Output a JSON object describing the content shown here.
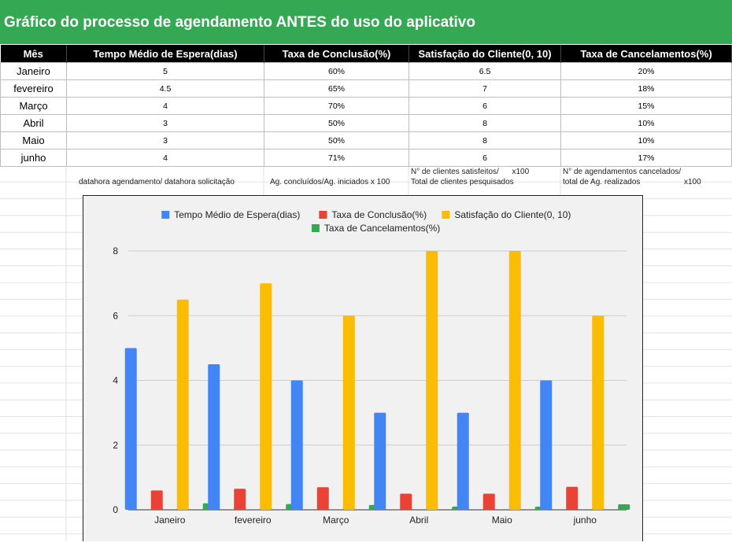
{
  "sheet": {
    "title": "Gráfico do processo de agendamento ANTES do uso do aplicativo",
    "title_bg": "#34a853",
    "headers": [
      "Mês",
      "Tempo Médio de Espera(dias)",
      "Taxa de Conclusão(%)",
      "Satisfação do Cliente(0, 10)",
      "Taxa de Cancelamentos(%)"
    ],
    "rows": [
      [
        "Janeiro",
        "5",
        "60%",
        "6.5",
        "20%"
      ],
      [
        "fevereiro",
        "4.5",
        "65%",
        "7",
        "18%"
      ],
      [
        "Março",
        "4",
        "70%",
        "6",
        "15%"
      ],
      [
        "Abril",
        "3",
        "50%",
        "8",
        "10%"
      ],
      [
        "Maio",
        "3",
        "50%",
        "8",
        "10%"
      ],
      [
        "junho",
        "4",
        "71%",
        "6",
        "17%"
      ]
    ],
    "notes": {
      "espera": "datahora agendamento/ datahora solicitação",
      "conclusao": "Ag. concluídos/Ag. iniciados x 100",
      "satisfacao_1": "N° de clientes satisfeitos/      x100",
      "satisfacao_2": "Total de clientes pesquisados",
      "cancel_1": "N° de agendamentos cancelados/",
      "cancel_2": "total de Ag. realizados                    x100"
    }
  },
  "chart_data": {
    "type": "bar",
    "categories": [
      "Janeiro",
      "fevereiro",
      "Março",
      "Abril",
      "Maio",
      "junho"
    ],
    "series": [
      {
        "name": "Tempo Médio de Espera(dias)",
        "color": "#4285f4",
        "values": [
          5,
          4.5,
          4,
          3,
          3,
          4
        ]
      },
      {
        "name": "Taxa de Conclusão(%)",
        "color": "#ea4335",
        "values": [
          0.6,
          0.65,
          0.7,
          0.5,
          0.5,
          0.71
        ]
      },
      {
        "name": "Satisfação do Cliente(0, 10)",
        "color": "#fbbc04",
        "values": [
          6.5,
          7,
          6,
          8,
          8,
          6
        ]
      },
      {
        "name": "Taxa de Cancelamentos(%)",
        "color": "#34a853",
        "values": [
          0.2,
          0.18,
          0.15,
          0.1,
          0.1,
          0.17
        ]
      }
    ],
    "title": "",
    "xlabel": "",
    "ylabel": "",
    "ylim": [
      0,
      8
    ],
    "yticks": [
      0,
      2,
      4,
      6,
      8
    ],
    "grid": true,
    "legend": "top"
  }
}
